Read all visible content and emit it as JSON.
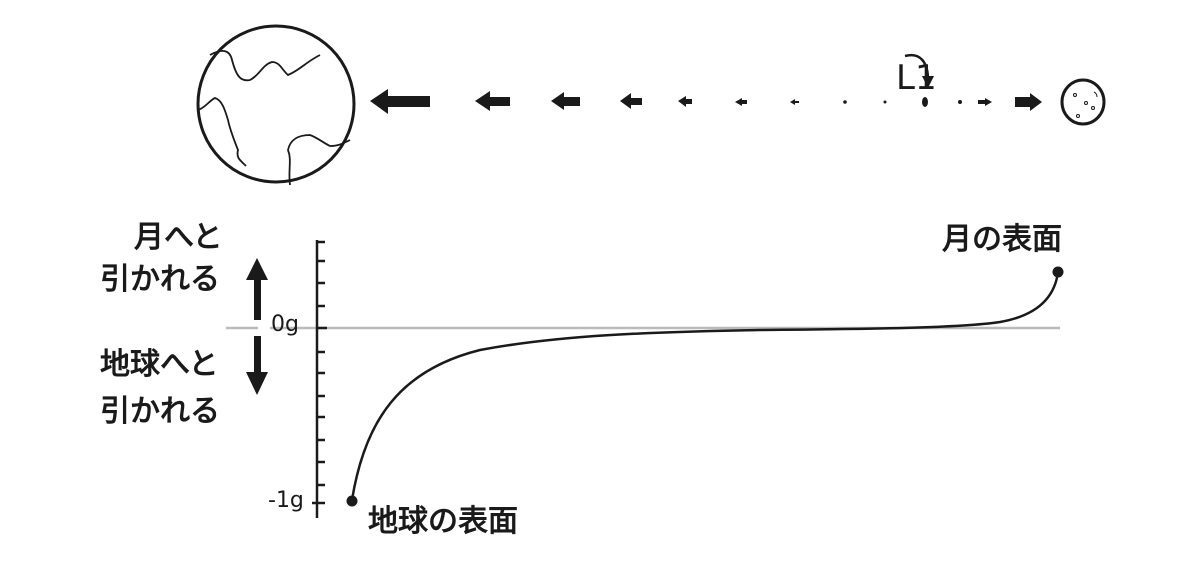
{
  "top": {
    "l1_label": "L1",
    "bodies": [
      "earth-icon",
      "moon-icon"
    ]
  },
  "graph": {
    "up_label_line1": "月へと",
    "up_label_line2": "引かれる",
    "down_label_line1": "地球へと",
    "down_label_line2": "引かれる",
    "tick_zero": "0g",
    "tick_minus_one": "-1g",
    "earth_surface_label": "地球の表面",
    "moon_surface_label": "月の表面",
    "reference_line_color": "#bbbbbb",
    "ink_color": "#1a1a1a"
  }
}
